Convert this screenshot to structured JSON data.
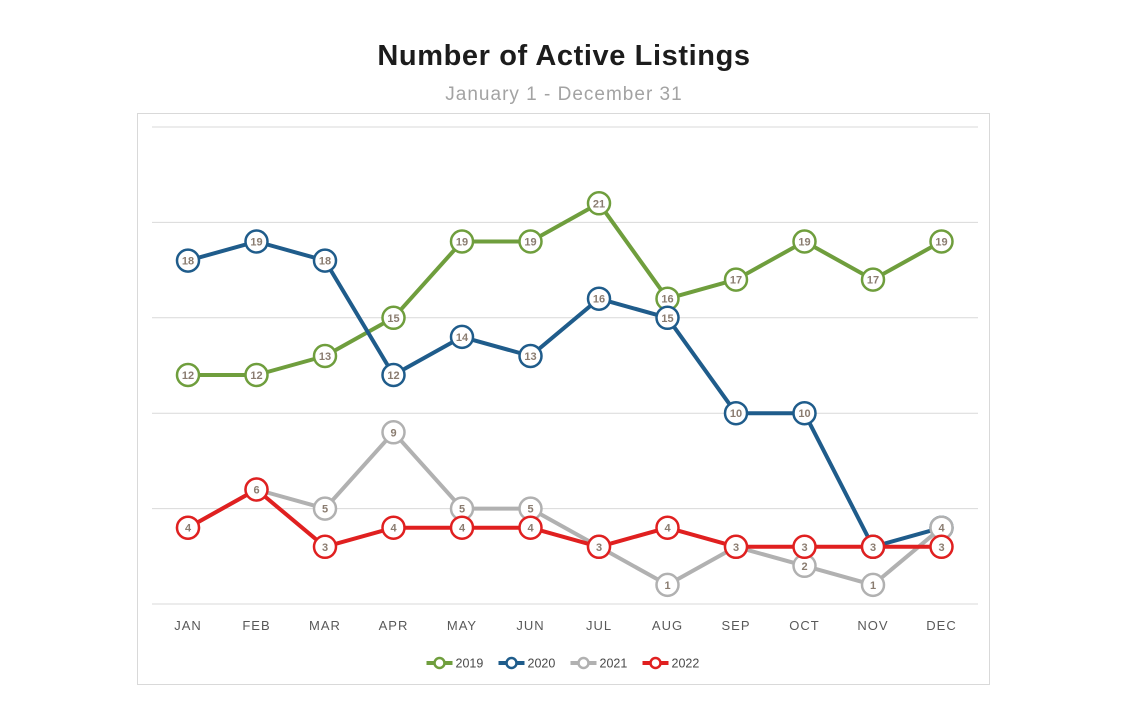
{
  "chart": {
    "title": "Number of Active Listings",
    "subtitle": "January 1 - December 31"
  },
  "chart_data": {
    "type": "line",
    "title": "Number of Active Listings",
    "subtitle": "January 1 - December 31",
    "categories": [
      "JAN",
      "FEB",
      "MAR",
      "APR",
      "MAY",
      "JUN",
      "JUL",
      "AUG",
      "SEP",
      "OCT",
      "NOV",
      "DEC"
    ],
    "series": [
      {
        "name": "2019",
        "color": "#6f9e3d",
        "values": [
          12,
          12,
          13,
          15,
          19,
          19,
          21,
          16,
          17,
          19,
          17,
          19
        ]
      },
      {
        "name": "2020",
        "color": "#1f5c8b",
        "values": [
          18,
          19,
          18,
          12,
          14,
          13,
          16,
          15,
          10,
          10,
          3,
          4
        ]
      },
      {
        "name": "2021",
        "color": "#b1b1b1",
        "values": [
          4,
          6,
          5,
          9,
          5,
          5,
          3,
          1,
          3,
          2,
          1,
          4
        ]
      },
      {
        "name": "2022",
        "color": "#e02020",
        "values": [
          4,
          6,
          3,
          4,
          4,
          4,
          3,
          4,
          3,
          3,
          3,
          3
        ]
      }
    ],
    "xlabel": "",
    "ylabel": "",
    "ylim": [
      0,
      25
    ],
    "grid_step": 5,
    "grid": true,
    "legend_position": "bottom",
    "marker_style": "circle-with-value",
    "gridline_color": "#d9d9d9",
    "axis_label_color": "#595959",
    "legend_label_color": "#4a4a4a",
    "marker_label_color": "#8a7c70"
  }
}
